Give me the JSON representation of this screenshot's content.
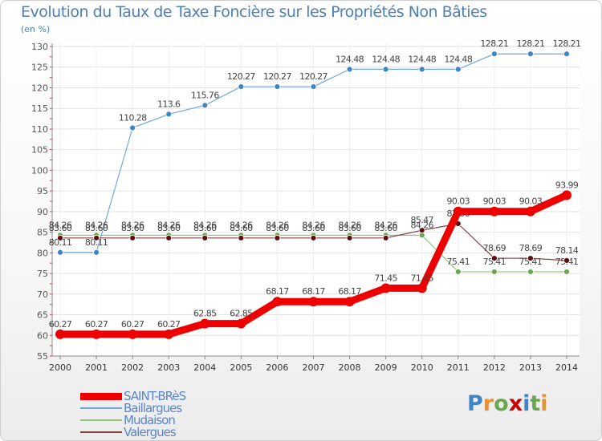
{
  "title": "Evolution du Taux de Taxe Foncière sur les Propriétés Non Bâties",
  "unit_label": "(en %)",
  "logo_text": "Proxiti",
  "chart_data": {
    "type": "line",
    "title": "Evolution du Taux de Taxe Foncière sur les Propriétés Non Bâties",
    "ylabel": "(en %)",
    "xlabel": "",
    "x": [
      "2000",
      "2001",
      "2002",
      "2003",
      "2004",
      "2005",
      "2006",
      "2007",
      "2008",
      "2009",
      "2010",
      "2011",
      "2012",
      "2013",
      "2014"
    ],
    "ylim": [
      55,
      130
    ],
    "yticks": [
      55,
      60,
      65,
      70,
      75,
      80,
      85,
      90,
      95,
      100,
      105,
      110,
      115,
      120,
      125,
      130
    ],
    "series": [
      {
        "name": "Baillargues",
        "color": "#6fa8dc",
        "point_color": "#3d85c6",
        "values": [
          80.11,
          80.11,
          110.28,
          113.6,
          115.76,
          120.27,
          120.27,
          120.27,
          124.48,
          124.48,
          124.48,
          124.48,
          128.21,
          128.21,
          128.21
        ],
        "labels": [
          "80.11",
          "80.11",
          "110.28",
          "113.6",
          "115.76",
          "120.27",
          "120.27",
          "120.27",
          "124.48",
          "124.48",
          "124.48",
          "124.48",
          "128.21",
          "128.21",
          "128.21"
        ]
      },
      {
        "name": "Mudaison",
        "color": "#93c47d",
        "point_color": "#6aa84f",
        "values": [
          84.26,
          84.26,
          84.26,
          84.26,
          84.26,
          84.26,
          84.26,
          84.26,
          84.26,
          84.26,
          84.26,
          75.41,
          75.41,
          75.41,
          75.41
        ],
        "labels": [
          "84.26",
          "84.26",
          "84.26",
          "84.26",
          "84.26",
          "84.26",
          "84.26",
          "84.26",
          "84.26",
          "84.26",
          "84.26",
          "75.41",
          "75.41",
          "75.41",
          "75.41"
        ]
      },
      {
        "name": "Valergues",
        "color": "#7f3f3f",
        "point_color": "#5b0f0f",
        "values": [
          83.6,
          83.6,
          83.6,
          83.6,
          83.6,
          83.6,
          83.6,
          83.6,
          83.6,
          83.6,
          85.47,
          87.06,
          78.69,
          78.69,
          78.14
        ],
        "labels": [
          "83.60",
          "83.60",
          "83.60",
          "83.60",
          "83.60",
          "83.60",
          "83.60",
          "83.60",
          "83.60",
          "83.60",
          "85.47",
          "87.06",
          "78.69",
          "78.69",
          "78.14"
        ]
      },
      {
        "name": "SAINT-BRèS",
        "color": "#ee0000",
        "point_color": "#ee0000",
        "values": [
          60.27,
          60.27,
          60.27,
          60.27,
          62.85,
          62.85,
          68.17,
          68.17,
          68.17,
          71.45,
          71.45,
          90.03,
          90.03,
          90.03,
          93.99
        ],
        "labels": [
          "60.27",
          "60.27",
          "60.27",
          "60.27",
          "62.85",
          "62.85",
          "68.17",
          "68.17",
          "68.17",
          "71.45",
          "71.45",
          "90.03",
          "90.03",
          "90.03",
          "93.99"
        ]
      }
    ]
  },
  "legend": [
    {
      "name": "SAINT-BRèS",
      "color": "#ee0000"
    },
    {
      "name": "Baillargues",
      "color": "#6fa8dc"
    },
    {
      "name": "Mudaison",
      "color": "#93c47d"
    },
    {
      "name": "Valergues",
      "color": "#7f3f3f"
    }
  ]
}
